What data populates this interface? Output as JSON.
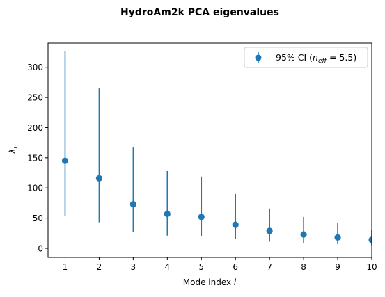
{
  "chart_data": {
    "type": "scatter",
    "title": "HydroAm2k PCA eigenvalues",
    "xlabel_prefix": "Mode index ",
    "xlabel_var": "i",
    "ylabel_main": "λ",
    "ylabel_sub": "i",
    "x": [
      1,
      2,
      3,
      4,
      5,
      6,
      7,
      8,
      9,
      10
    ],
    "y": [
      145,
      116,
      73,
      57,
      52,
      39,
      29,
      23,
      18,
      14
    ],
    "ci_low": [
      54,
      43,
      27,
      21,
      20,
      15,
      11,
      9,
      7,
      5
    ],
    "ci_high": [
      327,
      265,
      167,
      128,
      119,
      90,
      66,
      52,
      42,
      31
    ],
    "xlim": [
      0.5,
      10
    ],
    "ylim": [
      -15,
      340
    ],
    "xticks": [
      1,
      2,
      3,
      4,
      5,
      6,
      7,
      8,
      9,
      10
    ],
    "yticks": [
      0,
      50,
      100,
      150,
      200,
      250,
      300
    ],
    "legend": {
      "position": "upper-right",
      "label_prefix": "95% CI (",
      "label_var": "n",
      "label_sub": "eff",
      "label_suffix": " = 5.5)"
    },
    "grid": false,
    "color": "#1f77b4"
  }
}
